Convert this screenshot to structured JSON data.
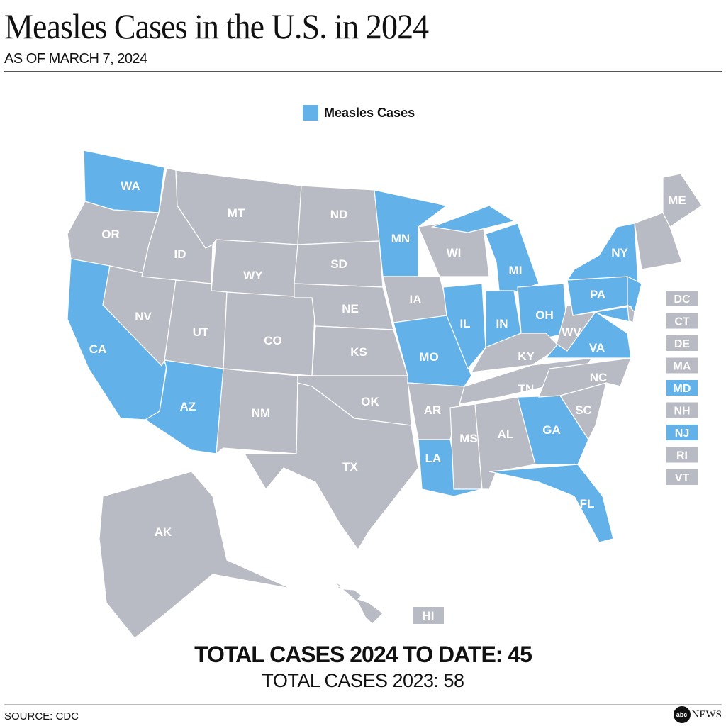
{
  "header": {
    "title": "Measles Cases in the U.S. in 2024",
    "subtitle": "AS OF MARCH 7, 2024"
  },
  "legend": {
    "label": "Measles Cases",
    "color": "#62b1e9"
  },
  "colors": {
    "cases": "#62b1e9",
    "no_cases": "#b8bbc4",
    "border": "#ffffff",
    "label": "#ffffff"
  },
  "states": [
    {
      "abbr": "WA",
      "cases": true
    },
    {
      "abbr": "OR",
      "cases": false
    },
    {
      "abbr": "CA",
      "cases": true
    },
    {
      "abbr": "NV",
      "cases": false
    },
    {
      "abbr": "ID",
      "cases": false
    },
    {
      "abbr": "MT",
      "cases": false
    },
    {
      "abbr": "WY",
      "cases": false
    },
    {
      "abbr": "UT",
      "cases": false
    },
    {
      "abbr": "AZ",
      "cases": true
    },
    {
      "abbr": "CO",
      "cases": false
    },
    {
      "abbr": "NM",
      "cases": false
    },
    {
      "abbr": "ND",
      "cases": false
    },
    {
      "abbr": "SD",
      "cases": false
    },
    {
      "abbr": "NE",
      "cases": false
    },
    {
      "abbr": "KS",
      "cases": false
    },
    {
      "abbr": "OK",
      "cases": false
    },
    {
      "abbr": "TX",
      "cases": false
    },
    {
      "abbr": "MN",
      "cases": true
    },
    {
      "abbr": "IA",
      "cases": false
    },
    {
      "abbr": "MO",
      "cases": true
    },
    {
      "abbr": "AR",
      "cases": false
    },
    {
      "abbr": "LA",
      "cases": true
    },
    {
      "abbr": "WI",
      "cases": false
    },
    {
      "abbr": "IL",
      "cases": true
    },
    {
      "abbr": "MI",
      "cases": true
    },
    {
      "abbr": "IN",
      "cases": true
    },
    {
      "abbr": "OH",
      "cases": true
    },
    {
      "abbr": "KY",
      "cases": false
    },
    {
      "abbr": "TN",
      "cases": false
    },
    {
      "abbr": "MS",
      "cases": false
    },
    {
      "abbr": "AL",
      "cases": false
    },
    {
      "abbr": "GA",
      "cases": true
    },
    {
      "abbr": "FL",
      "cases": true
    },
    {
      "abbr": "SC",
      "cases": false
    },
    {
      "abbr": "NC",
      "cases": false
    },
    {
      "abbr": "VA",
      "cases": true
    },
    {
      "abbr": "WV",
      "cases": false
    },
    {
      "abbr": "PA",
      "cases": true
    },
    {
      "abbr": "NY",
      "cases": true
    },
    {
      "abbr": "ME",
      "cases": false
    },
    {
      "abbr": "AK",
      "cases": false
    },
    {
      "abbr": "HI",
      "cases": false
    }
  ],
  "small_states": [
    {
      "abbr": "DC",
      "cases": false
    },
    {
      "abbr": "CT",
      "cases": false
    },
    {
      "abbr": "DE",
      "cases": false
    },
    {
      "abbr": "MA",
      "cases": false
    },
    {
      "abbr": "MD",
      "cases": true
    },
    {
      "abbr": "NH",
      "cases": false
    },
    {
      "abbr": "NJ",
      "cases": true
    },
    {
      "abbr": "RI",
      "cases": false
    },
    {
      "abbr": "VT",
      "cases": false
    }
  ],
  "totals": {
    "line1": "TOTAL CASES 2024 TO DATE: 45",
    "line2": "TOTAL CASES 2023: 58"
  },
  "footer": {
    "source": "SOURCE: CDC",
    "logo_abc": "abc",
    "logo_news": "NEWS"
  }
}
